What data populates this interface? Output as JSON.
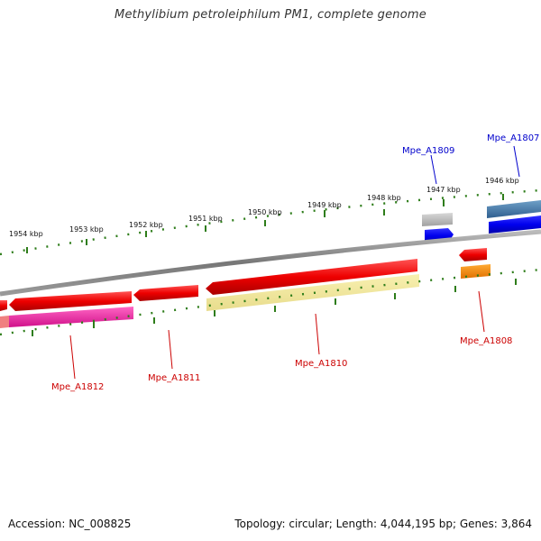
{
  "title": "Methylibium petroleiphilum PM1, complete genome",
  "footer": {
    "accession": "Accession: NC_008825",
    "summary": "Topology: circular; Length: 4,044,195 bp; Genes: 3,864"
  },
  "ruler": {
    "ticks": [
      "1954 kbp",
      "1953 kbp",
      "1952 kbp",
      "1951 kbp",
      "1950 kbp",
      "1949 kbp",
      "1948 kbp",
      "1947 kbp",
      "1946 kbp"
    ]
  },
  "genes": {
    "forward": [
      {
        "name": "Mpe_A1809",
        "color": "#0000cc"
      },
      {
        "name": "Mpe_A1807",
        "color": "#0000cc"
      }
    ],
    "reverse": [
      {
        "name": "Mpe_A1812",
        "color": "#cc0000"
      },
      {
        "name": "Mpe_A1811",
        "color": "#cc0000"
      },
      {
        "name": "Mpe_A1810",
        "color": "#cc0000"
      },
      {
        "name": "Mpe_A1808",
        "color": "#cc0000"
      }
    ]
  },
  "colors": {
    "backbone": "#888888",
    "tick_dots": "#2e7d1a",
    "cds_forward": "#0000ff",
    "cds_reverse": "#ff0000",
    "gene_grey": "#b0b0b0",
    "gene_steel": "#4682b4",
    "gene_pink": "#ff3399",
    "gene_khaki": "#f0e68c",
    "gene_orange": "#ff8c00"
  }
}
